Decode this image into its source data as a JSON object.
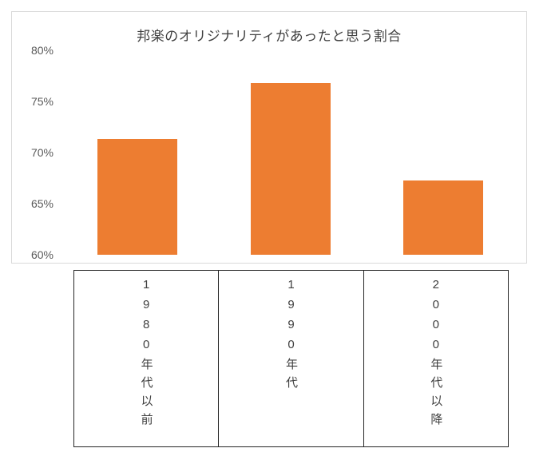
{
  "chart_data": {
    "type": "bar",
    "title": "邦楽のオリジナリティがあったと思う割合",
    "categories": [
      "1980年代以前",
      "1990年代",
      "2000年代以降"
    ],
    "values": [
      71.3,
      76.8,
      67.3
    ],
    "ylim": [
      60,
      80
    ],
    "yticks": [
      "80%",
      "75%",
      "70%",
      "65%",
      "60%"
    ],
    "xlabel": "",
    "ylabel": "",
    "grid": false,
    "legend": false,
    "bar_color": "#ED7D31"
  },
  "colors": {
    "bar": "#ED7D31",
    "title_text": "#404040",
    "axis_text": "#595959",
    "chart_border": "#D9D9D9",
    "table_border": "#262626",
    "table_text": "#404040"
  }
}
